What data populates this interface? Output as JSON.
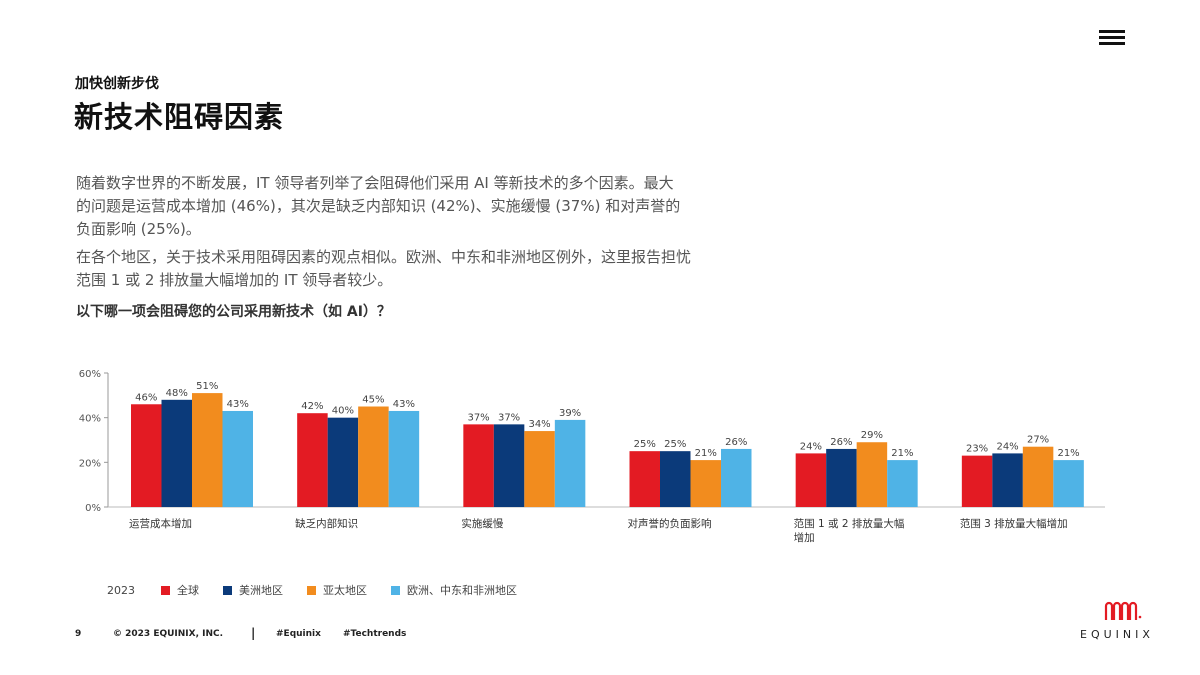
{
  "header": {
    "kicker": "加快创新步伐",
    "title": "新技术阻碍因素",
    "menu_icon": "hamburger-menu-icon"
  },
  "body": {
    "paragraph1_lines": [
      "随着数字世界的不断发展，IT 领导者列举了会阻碍他们采用 AI 等新技术的多个因素。最大",
      "的问题是运营成本增加 (46%)，其次是缺乏内部知识 (42%)、实施缓慢 (37%) 和对声誉的",
      "负面影响 (25%)。"
    ],
    "paragraph2_lines": [
      "在各个地区，关于技术采用阻碍因素的观点相似。欧洲、中东和非洲地区例外，这里报告担忧",
      "范围 1 或 2 排放量大幅增加的 IT 领导者较少。"
    ],
    "question": "以下哪一项会阻碍您的公司采用新技术（如 AI）？"
  },
  "chart_data": {
    "type": "bar",
    "categories": [
      "运营成本增加",
      "缺乏内部知识",
      "实施缓慢",
      "对声誉的负面影响",
      "范围 1 或 2 排放量大幅\n增加",
      "范围 3 排放量大幅增加"
    ],
    "series": [
      {
        "name": "全球",
        "color": "#e31b23",
        "values": [
          46,
          42,
          37,
          25,
          24,
          23
        ]
      },
      {
        "name": "美洲地区",
        "color": "#0b3a7a",
        "values": [
          48,
          40,
          37,
          25,
          26,
          24
        ]
      },
      {
        "name": "亚太地区",
        "color": "#f28c1e",
        "values": [
          51,
          45,
          34,
          21,
          29,
          27
        ]
      },
      {
        "name": "欧洲、中东和非洲地区",
        "color": "#4fb3e6",
        "values": [
          43,
          43,
          39,
          26,
          21,
          21
        ]
      }
    ],
    "yticks": [
      0,
      20,
      40,
      60
    ],
    "tick_suffix": "%",
    "ylim": [
      0,
      60
    ],
    "grid": false,
    "legend_placement": "bottom-left"
  },
  "legend": {
    "year": "2023"
  },
  "footer": {
    "page": "9",
    "copyright": "© 2023 EQUINIX, INC.",
    "separator": "|",
    "tag1": "#Equinix",
    "tag2": "#Techtrends"
  },
  "brand": {
    "name": "EQUINIX",
    "logo_icon": "equinix-logo-icon",
    "color": "#e31b23"
  }
}
